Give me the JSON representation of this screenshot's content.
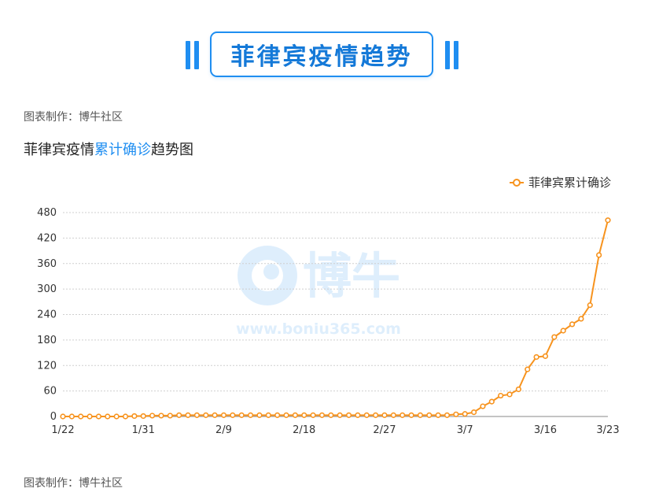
{
  "banner": {
    "title": "菲律宾疫情趋势"
  },
  "source_top": "图表制作：博牛社区",
  "source_bottom": "图表制作：博牛社区",
  "chart_heading": {
    "prefix": "菲律宾疫情",
    "highlight": "累计确诊",
    "suffix": "趋势图"
  },
  "watermark": {
    "brand": "博牛",
    "url": "www.boniu365.com"
  },
  "colors": {
    "accent": "#1f8ef1",
    "series": "#f7931e",
    "grid": "#cfcfcf"
  },
  "chart_data": {
    "type": "line",
    "title": "菲律宾疫情累计确诊趋势图",
    "xlabel": "",
    "ylabel": "",
    "ylim": [
      0,
      480
    ],
    "yticks": [
      0,
      60,
      120,
      180,
      240,
      300,
      360,
      420,
      480
    ],
    "xtick_labels": [
      "1/22",
      "1/31",
      "2/9",
      "2/18",
      "2/27",
      "3/7",
      "3/16",
      "3/23"
    ],
    "grid": true,
    "legend_position": "top-right",
    "x": [
      "1/22",
      "1/23",
      "1/24",
      "1/25",
      "1/26",
      "1/27",
      "1/28",
      "1/29",
      "1/30",
      "1/31",
      "2/1",
      "2/2",
      "2/3",
      "2/4",
      "2/5",
      "2/6",
      "2/7",
      "2/8",
      "2/9",
      "2/10",
      "2/11",
      "2/12",
      "2/13",
      "2/14",
      "2/15",
      "2/16",
      "2/17",
      "2/18",
      "2/19",
      "2/20",
      "2/21",
      "2/22",
      "2/23",
      "2/24",
      "2/25",
      "2/26",
      "2/27",
      "2/28",
      "2/29",
      "3/1",
      "3/2",
      "3/3",
      "3/4",
      "3/5",
      "3/6",
      "3/7",
      "3/8",
      "3/9",
      "3/10",
      "3/11",
      "3/12",
      "3/13",
      "3/14",
      "3/15",
      "3/16",
      "3/17",
      "3/18",
      "3/19",
      "3/20",
      "3/21",
      "3/22",
      "3/23"
    ],
    "series": [
      {
        "name": "菲律宾累计确诊",
        "values": [
          0,
          0,
          0,
          0,
          0,
          0,
          0,
          0,
          1,
          1,
          2,
          2,
          2,
          3,
          3,
          3,
          3,
          3,
          3,
          3,
          3,
          3,
          3,
          3,
          3,
          3,
          3,
          3,
          3,
          3,
          3,
          3,
          3,
          3,
          3,
          3,
          3,
          3,
          3,
          3,
          3,
          3,
          3,
          3,
          5,
          6,
          10,
          24,
          35,
          49,
          52,
          64,
          111,
          140,
          142,
          187,
          202,
          217,
          230,
          262,
          380,
          462
        ]
      }
    ]
  }
}
